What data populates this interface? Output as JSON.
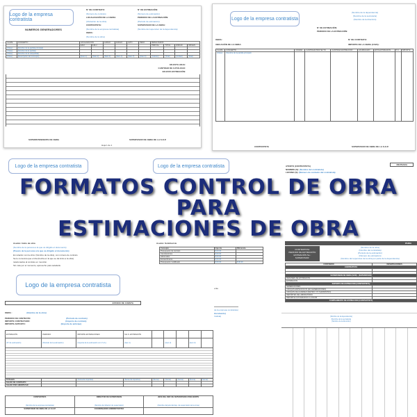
{
  "logo_text": "Logo de la empresa contratista",
  "title": {
    "line1": "FORMATOS CONTROL DE OBRA",
    "line2": "PARA",
    "line3": "ESTIMACIONES DE OBRA"
  },
  "title_color": "#1c2d7a",
  "doc1": {
    "heading": "NUMEROS GENERADORES",
    "fields": [
      "N° DE CONTRATO:",
      "LOCALIZACIÓN DE LA OBRA:",
      "CONTRATISTA:",
      "OBRA:"
    ],
    "values": [
      "(Número de contrato)",
      "(Ubicación de la obra)",
      "(Nombre de la empresa contratista)",
      "(Nombre de la obra)"
    ],
    "fields2": [
      "N° DE ESTIMACIÓN:",
      "PERIODO DE LA ESTIMACIÓN:",
      "SUPERVISOR DE LA OBRA:"
    ],
    "values2": [
      "(Número de estimación)",
      "(Periodo de estimación)",
      "(Nombre del supervisor de la dependencia)"
    ],
    "columns": [
      "CLAVE",
      "CONCEPTO",
      "EJE 1",
      "EJE 2",
      "LARGO",
      "ANCHO",
      "ALTO",
      "PESO",
      "PARCIAL",
      "TOTAL",
      "UNIDAD",
      "ORIGEN"
    ],
    "group_headers": [
      "LOCALIZACIÓN",
      "RESULTADOS"
    ],
    "totals": [
      "EN ESTA HOJA:",
      "CANTIDAD DE CATÁLOGO:",
      "EN ESTA ESTIMACIÓN:"
    ],
    "signatures": [
      "SUPERINTENDENTE DE OBRA",
      "SUPERVISOR DE OBRA DE LA S.O.P."
    ],
    "footer": "Hoja 1 de 1"
  },
  "doc2": {
    "header_lines": [
      "(Nombre de la dependencia)",
      "(Nombre de la secretaría)",
      "(Nombre de la dirección)"
    ],
    "fields": [
      "N° DE ESTIMACIÓN:",
      "PERIODO DE LA ESTIMACIÓN:",
      "OBRA:",
      "UBICACIÓN DE LA OBRA:",
      "N° DE CONTRATO:",
      "IMPORTE DE LA OBRA (C/IVA):"
    ],
    "columns": [
      "CLAVE",
      "CONCEPTO",
      "UNIDAD",
      "CANTIDAD PROYECTO",
      "CANTIDAD ESTIMACIÓN",
      "IMPORTE",
      "ACUMULADO",
      "ESTA ESTIMACIÓN",
      "P.U.",
      "IMPORTE"
    ],
    "signatures": [
      "CONTRATISTA",
      "SUPERVISOR DE OBRA DE LA S.O.P."
    ]
  },
  "doc3": {
    "subject": "Asunto: Inicio de obra",
    "lines": [
      "(Nombre de la persona a la que va dirigido el documento)",
      "(Puesto de la persona a la que va dirigido el documento)",
      "En relación con la obra: (Nombre de la obra), con número de contrato",
      "Se le comunica que el día (Fecha en la que se da inicio a la obra)",
      "relacionados al contrato en mención.",
      "Sin más por el momento, aprovecho para saludarlo."
    ]
  },
  "doc4": {
    "subject": "Asunto: Solicitud de",
    "table_headers": [
      "Concepto",
      "Importe",
      "Diferencia"
    ],
    "rows": [
      [
        "Presupuesto de contrato",
        "$ 00.00",
        ""
      ],
      [
        "Cancelaciones",
        "$ 00.00",
        ""
      ],
      [
        "Adicionales",
        "$ 00.00",
        ""
      ],
      [
        "Extraordinarios",
        "$ 00.00",
        ""
      ],
      [
        "Presupuesto modificado",
        "$ 00.00",
        "$ 00.00"
      ]
    ],
    "closing": "Sin más por el momento, aprovecho para saludarlo.",
    "regards": "Atentamente",
    "sign_lines": [
      "(Nombre del representante legal o director general de la empresa contratista)",
      "(Puesto de la persona que firma el documento)",
      "(Razón social de la empresa contratista)"
    ]
  },
  "doc5": {
    "revision": "REVISADA",
    "fields": [
      "ATENTO (CONTRATISTA)",
      "NOMBRE (S):",
      "LEFONO (S):"
    ],
    "values": [
      "(Nombre del contratista)",
      "(Número de contacto del contratista)"
    ],
    "block_labels": [
      "CONTRATISTA:",
      "PERIODO DE ESTIMACIÓN:",
      "ESTIMACIÓN No.:",
      "SUPERVISOR:"
    ],
    "block_values": [
      "(Nombre de la obra)",
      "(Nombre del contratista)",
      "(Periodo de la estimación)",
      "(Número de estimación)",
      "(Nombre del supervisor de la obra por parte de la dependencia)"
    ],
    "headers": [
      "CONTENIDO",
      "OBSERVACIONES"
    ],
    "sections": [
      "CONTRATISTA",
      "SUPERVISIÓN DE OBRA (SUD) - (SUPERVISOR)",
      "SOPORTE DE ESTIMACIÓN (CONTRATISTA)",
      "COMPLEMENTO DE ESTIMACIÓN (CONTRATISTA)"
    ],
    "items": [
      "RESUMEN DE ESTIMACIÓN",
      "ESTIMACIÓN",
      "GENERADORES",
      "CROQUIS ESPECÍFICOS (EN GENERADORES)",
      "CROQUIS DE ACARREO (RETIRO Y/O SUMINISTRO)",
      "REPORTES DE LABORATORIO",
      "REPORTE FOTOGRÁFICO A COLOR"
    ],
    "banner": "PARIA"
  },
  "doc6": {
    "heading": "ESTADO DE CUENTA",
    "fields": [
      "OBRA :",
      "PERIODO DE CONTRATO:",
      "IMPORTE CONTRATADO:",
      "IMPORTE ANTICIPO:"
    ],
    "values": [
      "(Nombre de la obra)",
      "(Periodo de contrato)",
      "(Importe de contrato)",
      "(Importe de anticipo)"
    ],
    "columns": [
      "ESTIMACIÓN",
      "PERIODO",
      "IMPORTE ESTIMACIONES",
      "S.E.S. ESTIMACIÓN"
    ],
    "row": [
      "(N° de estimación)",
      "(Periodo de la estimación)",
      "(Importe de la estimación con I.V.A.)",
      "(Gen 1)",
      "(Gen 2)",
      "(Gen 3)"
    ],
    "totals": [
      "TOTALES",
      "SALDO DE CONTRATO",
      "SALDO POR AMORTIZAR"
    ],
    "signatures": [
      "CONTRATISTA",
      "DIRECTOR DE SUPERVISIÓN",
      "JEFE DEL DEP. DE SUPERVISIÓN ZONA NORTE",
      "SUPERVISOR DE OBRA DE LA S.O.P.",
      "COORDINADOR ADMINISTRATIVO"
    ],
    "sign_names": [
      "(Nombre de la empresa contratista)",
      "(Nombre del director de supervisión)",
      "(Nombre del jefe del dep. de supervisión de la zona)"
    ]
  },
  "doc7": {
    "header_lines": [
      "(Nombre de la dependencia)",
      "(Nombre de la secretaría)",
      "(Nombre de la dirección)"
    ]
  }
}
